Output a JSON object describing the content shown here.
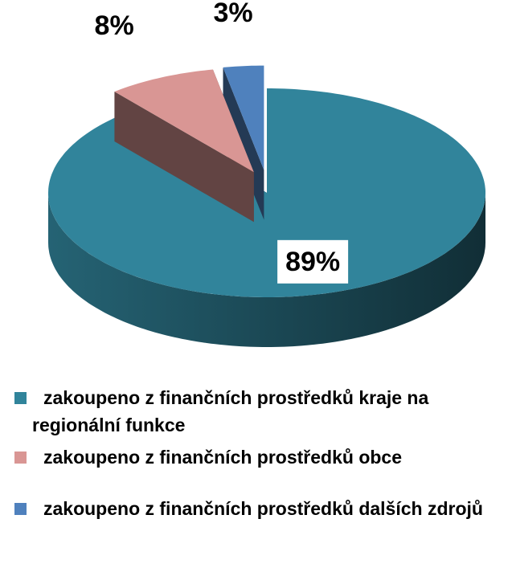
{
  "chart_data": {
    "type": "pie",
    "categories": [
      "zakoupeno z finančních prostředků kraje na regionální funkce",
      "zakoupeno z finančních prostředků obce",
      "zakoupeno z finančních prostředků dalších zdrojů"
    ],
    "values": [
      89,
      8,
      3
    ],
    "value_labels": [
      "89%",
      "8%",
      "3%"
    ],
    "colors": [
      "#31849b",
      "#d99694",
      "#4f81bd"
    ],
    "legend": "bottom"
  }
}
